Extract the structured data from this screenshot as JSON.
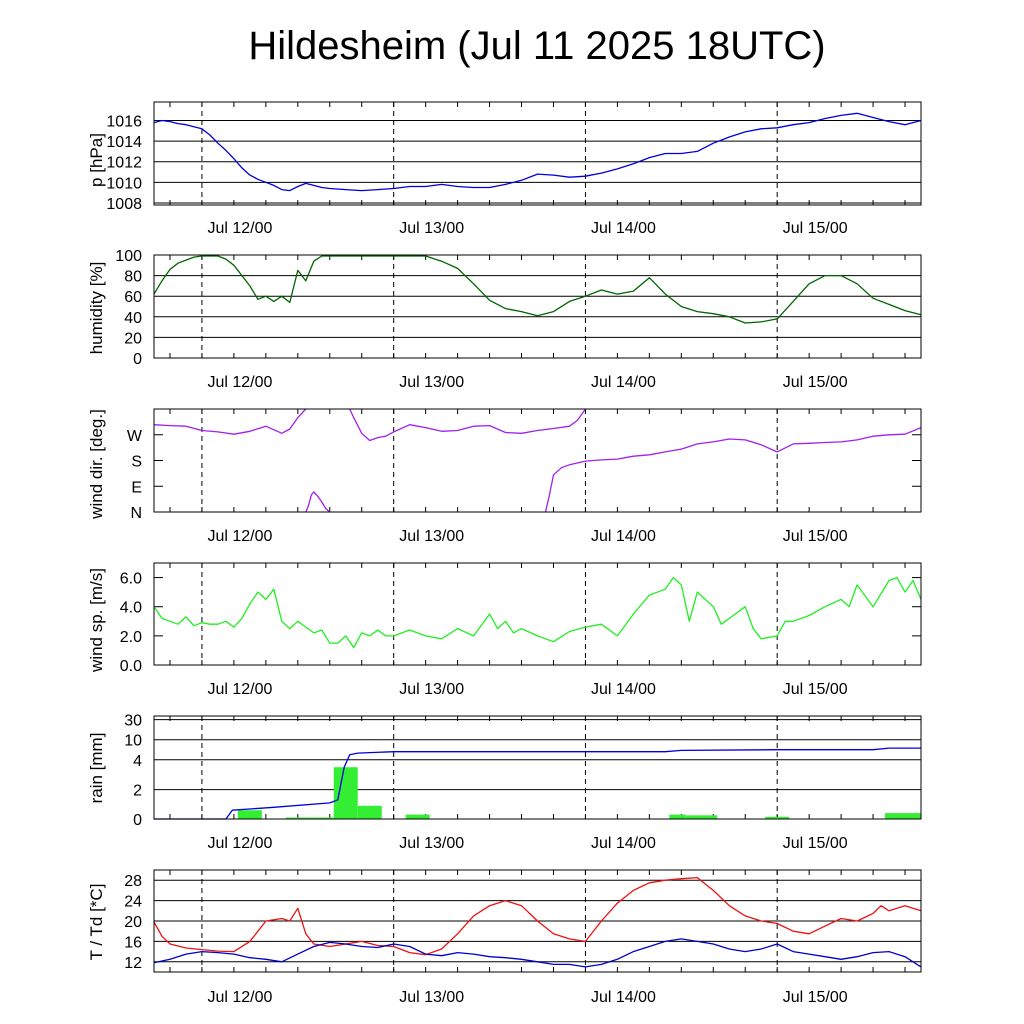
{
  "title": "Hildesheim (Jul 11 2025 18UTC)",
  "colors": {
    "pressure": "#0000dd",
    "humidity": "#006400",
    "wind_dir": "#a020f0",
    "wind_speed": "#22ee22",
    "rain_total": "#0000dd",
    "rain_bars": "#33ee33",
    "temperature": "#ee1111",
    "dewpoint": "#0000cc",
    "grid": "#000000"
  },
  "chart_data": [
    {
      "type": "line",
      "id": "pressure",
      "ylabel": "p [hPa]",
      "x_unit": "hours since Jul 11 18UTC",
      "xlim": [
        0,
        96
      ],
      "x_ticks": [
        6,
        30,
        54,
        78
      ],
      "x_tick_labels": [
        "Jul 12/00",
        "Jul 13/00",
        "Jul 14/00",
        "Jul 15/00"
      ],
      "ylim": [
        1007.8,
        1017.8
      ],
      "y_ticks": [
        1008,
        1010,
        1012,
        1014,
        1016
      ],
      "y_tick_labels": [
        "1008",
        "1010",
        "1012",
        "1014",
        "1016"
      ],
      "grid": true,
      "series": [
        {
          "color_key": "pressure",
          "x": [
            0,
            1,
            2,
            3,
            4,
            5,
            6,
            7,
            8,
            9,
            10,
            11,
            12,
            13,
            14,
            15,
            16,
            17,
            18,
            19,
            20,
            21,
            22,
            24,
            26,
            28,
            30,
            32,
            34,
            36,
            38,
            40,
            42,
            44,
            46,
            48,
            50,
            52,
            54,
            56,
            58,
            60,
            62,
            64,
            66,
            68,
            70,
            72,
            74,
            76,
            78,
            80,
            82,
            84,
            86,
            88,
            90,
            92,
            94,
            96
          ],
          "y": [
            1015.8,
            1016.0,
            1015.9,
            1015.7,
            1015.6,
            1015.4,
            1015.2,
            1014.6,
            1013.8,
            1013.1,
            1012.3,
            1011.4,
            1010.7,
            1010.3,
            1010.0,
            1009.7,
            1009.3,
            1009.2,
            1009.6,
            1009.9,
            1009.7,
            1009.5,
            1009.4,
            1009.3,
            1009.2,
            1009.3,
            1009.4,
            1009.6,
            1009.6,
            1009.8,
            1009.6,
            1009.5,
            1009.5,
            1009.8,
            1010.2,
            1010.8,
            1010.7,
            1010.5,
            1010.6,
            1010.9,
            1011.3,
            1011.8,
            1012.4,
            1012.8,
            1012.8,
            1013.0,
            1013.8,
            1014.4,
            1014.9,
            1015.2,
            1015.3,
            1015.6,
            1015.8,
            1016.2,
            1016.5,
            1016.7,
            1016.3,
            1015.9,
            1015.6,
            1016.0
          ]
        }
      ]
    },
    {
      "type": "line",
      "id": "humidity",
      "ylabel": "humidity [%]",
      "x_unit": "hours since Jul 11 18UTC",
      "xlim": [
        0,
        96
      ],
      "x_ticks": [
        6,
        30,
        54,
        78
      ],
      "x_tick_labels": [
        "Jul 12/00",
        "Jul 13/00",
        "Jul 14/00",
        "Jul 15/00"
      ],
      "ylim": [
        0,
        100
      ],
      "y_ticks": [
        0,
        20,
        40,
        60,
        80,
        100
      ],
      "y_tick_labels": [
        "0",
        "20",
        "40",
        "60",
        "80",
        "100"
      ],
      "grid": true,
      "series": [
        {
          "color_key": "humidity",
          "x": [
            0,
            1,
            2,
            3,
            4,
            5,
            6,
            7,
            8,
            9,
            10,
            11,
            12,
            13,
            14,
            15,
            16,
            17,
            18,
            19,
            20,
            21,
            22,
            24,
            26,
            28,
            30,
            32,
            34,
            36,
            38,
            40,
            42,
            44,
            46,
            48,
            50,
            52,
            54,
            56,
            58,
            60,
            62,
            64,
            66,
            68,
            70,
            72,
            74,
            76,
            78,
            80,
            82,
            84,
            86,
            88,
            90,
            92,
            94,
            96
          ],
          "y": [
            62,
            75,
            86,
            92,
            95,
            98,
            99,
            99,
            99,
            96,
            90,
            80,
            70,
            57,
            60,
            55,
            60,
            54,
            85,
            75,
            94,
            99,
            99,
            99,
            99,
            99,
            99,
            99,
            99,
            94,
            87,
            72,
            56,
            48,
            45,
            41,
            45,
            55,
            60,
            66,
            62,
            65,
            78,
            62,
            50,
            45,
            43,
            40,
            34,
            35,
            38,
            55,
            72,
            80,
            80,
            72,
            58,
            52,
            46,
            42
          ]
        }
      ]
    },
    {
      "type": "line",
      "id": "wind_direction",
      "ylabel": "wind dir. [deg.]",
      "x_unit": "hours since Jul 11 18UTC",
      "xlim": [
        0,
        96
      ],
      "x_ticks": [
        6,
        30,
        54,
        78
      ],
      "x_tick_labels": [
        "Jul 12/00",
        "Jul 13/00",
        "Jul 14/00",
        "Jul 15/00"
      ],
      "ylim": [
        0,
        360
      ],
      "y_ticks": [
        0,
        90,
        180,
        270
      ],
      "y_tick_labels": [
        "N",
        "E",
        "S",
        "W"
      ],
      "grid": false,
      "series": [
        {
          "color_key": "wind_dir",
          "x": [
            0,
            2,
            4,
            6,
            8,
            10,
            12,
            14,
            16,
            17,
            18,
            19
          ],
          "y": [
            305,
            302,
            300,
            285,
            280,
            272,
            282,
            300,
            275,
            290,
            330,
            360
          ]
        },
        {
          "color_key": "wind_dir",
          "x": [
            19,
            19.3,
            19.7,
            20,
            20.5,
            21,
            21.5,
            22
          ],
          "y": [
            0,
            20,
            60,
            70,
            55,
            35,
            12,
            0
          ]
        },
        {
          "color_key": "wind_dir",
          "x": [
            24.5,
            25,
            26,
            27,
            28,
            29,
            30,
            32,
            34,
            36,
            38,
            40,
            42,
            44,
            46,
            48,
            50,
            52,
            53,
            54
          ],
          "y": [
            360,
            330,
            275,
            250,
            260,
            265,
            280,
            305,
            295,
            282,
            285,
            300,
            302,
            278,
            275,
            285,
            292,
            300,
            320,
            360
          ]
        },
        {
          "color_key": "wind_dir",
          "x": [
            49,
            49.5,
            50,
            51,
            52,
            54,
            56,
            58,
            60,
            62,
            64,
            66,
            68,
            70,
            72,
            74,
            76,
            78,
            80,
            82,
            84,
            86,
            88,
            90,
            92,
            94,
            96
          ],
          "y": [
            0,
            60,
            130,
            155,
            165,
            178,
            182,
            185,
            195,
            200,
            210,
            220,
            238,
            245,
            255,
            252,
            235,
            210,
            238,
            240,
            243,
            245,
            252,
            265,
            270,
            272,
            295
          ]
        }
      ]
    },
    {
      "type": "line",
      "id": "wind_speed",
      "ylabel": "wind sp. [m/s]",
      "x_unit": "hours since Jul 11 18UTC",
      "xlim": [
        0,
        96
      ],
      "x_ticks": [
        6,
        30,
        54,
        78
      ],
      "x_tick_labels": [
        "Jul 12/00",
        "Jul 13/00",
        "Jul 14/00",
        "Jul 15/00"
      ],
      "ylim": [
        0,
        7.0
      ],
      "y_ticks": [
        0,
        2,
        4,
        6
      ],
      "y_tick_labels": [
        "0.0",
        "2.0",
        "4.0",
        "6.0"
      ],
      "grid": false,
      "series": [
        {
          "color_key": "wind_speed",
          "x": [
            0,
            1,
            2,
            3,
            4,
            5,
            6,
            7,
            8,
            9,
            10,
            11,
            12,
            13,
            14,
            15,
            16,
            17,
            18,
            19,
            20,
            21,
            22,
            23,
            24,
            25,
            26,
            27,
            28,
            29,
            30,
            32,
            34,
            36,
            38,
            40,
            42,
            43,
            44,
            45,
            46,
            48,
            50,
            52,
            54,
            56,
            58,
            60,
            62,
            64,
            65,
            66,
            67,
            68,
            69,
            70,
            71,
            72,
            74,
            75,
            76,
            78,
            79,
            80,
            82,
            84,
            86,
            87,
            88,
            90,
            92,
            93,
            94,
            95,
            96
          ],
          "y": [
            4.0,
            3.2,
            3.0,
            2.8,
            3.3,
            2.7,
            2.9,
            2.8,
            2.8,
            3.0,
            2.6,
            3.2,
            4.2,
            5.0,
            4.5,
            5.2,
            3.0,
            2.5,
            3.0,
            2.6,
            2.2,
            2.4,
            1.5,
            1.5,
            2.0,
            1.2,
            2.2,
            2.0,
            2.4,
            2.0,
            2.0,
            2.4,
            2.0,
            1.8,
            2.5,
            2.0,
            3.5,
            2.5,
            3.0,
            2.2,
            2.5,
            2.0,
            1.6,
            2.3,
            2.6,
            2.8,
            2.0,
            3.5,
            4.8,
            5.2,
            6.0,
            5.5,
            3.0,
            5.0,
            4.5,
            4.0,
            2.8,
            3.2,
            4.0,
            2.5,
            1.8,
            2.0,
            3.0,
            3.0,
            3.4,
            4.0,
            4.5,
            4.0,
            5.5,
            4.0,
            5.8,
            6.0,
            5.0,
            5.8,
            4.5
          ]
        }
      ]
    },
    {
      "type": "bar",
      "id": "rain",
      "ylabel": "rain [mm]",
      "x_unit": "hours since Jul 11 18UTC",
      "xlim": [
        0,
        96
      ],
      "x_ticks": [
        6,
        30,
        54,
        78
      ],
      "x_tick_labels": [
        "Jul 12/00",
        "Jul 13/00",
        "Jul 14/00",
        "Jul 15/00"
      ],
      "y_scale": "nonlinear",
      "y_ticks": [
        0,
        2,
        4,
        10,
        30
      ],
      "y_tick_labels": [
        "0",
        "2",
        "4",
        "10",
        "30"
      ],
      "grid": true,
      "bars": {
        "color_key": "rain_bars",
        "x_start": [
          10.5,
          16.5,
          22.5,
          25.5,
          31.5,
          64.5,
          66.5,
          76.5,
          91.5
        ],
        "x_end": [
          13.5,
          22.5,
          25.5,
          28.5,
          34.5,
          66.5,
          70.5,
          79.5,
          96
        ],
        "values": [
          0.6,
          0.1,
          3.5,
          0.9,
          0.3,
          0.3,
          0.25,
          0.15,
          0.4
        ]
      },
      "series": [
        {
          "color_key": "rain_total",
          "x": [
            0,
            9,
            9.8,
            15,
            22,
            23,
            23.8,
            24.5,
            25.5,
            30,
            40,
            54,
            64,
            66,
            78,
            90,
            92,
            96
          ],
          "y": [
            0,
            0,
            0.6,
            0.8,
            1.1,
            1.3,
            3.5,
            5.5,
            6.0,
            6.4,
            6.4,
            6.4,
            6.4,
            6.8,
            7.0,
            7.0,
            7.5,
            7.5
          ]
        }
      ]
    },
    {
      "type": "line",
      "id": "temperature",
      "ylabel": "T / Td [*C]",
      "x_unit": "hours since Jul 11 18UTC",
      "xlim": [
        0,
        96
      ],
      "x_ticks": [
        6,
        30,
        54,
        78
      ],
      "x_tick_labels": [
        "Jul 12/00",
        "Jul 13/00",
        "Jul 14/00",
        "Jul 15/00"
      ],
      "ylim": [
        10,
        30
      ],
      "y_ticks": [
        12,
        16,
        20,
        24,
        28
      ],
      "y_tick_labels": [
        "12",
        "16",
        "20",
        "24",
        "28"
      ],
      "grid": true,
      "series": [
        {
          "color_key": "temperature",
          "x": [
            0,
            1,
            2,
            4,
            6,
            8,
            10,
            12,
            14,
            16,
            17,
            18,
            19,
            20,
            22,
            24,
            26,
            28,
            30,
            32,
            34,
            36,
            38,
            40,
            42,
            44,
            46,
            48,
            50,
            52,
            54,
            56,
            58,
            60,
            62,
            64,
            66,
            68,
            70,
            72,
            74,
            76,
            78,
            80,
            82,
            84,
            86,
            88,
            90,
            91,
            92,
            94,
            96
          ],
          "y": [
            19.8,
            17,
            15.5,
            14.7,
            14.4,
            14.1,
            14.0,
            16.0,
            20.0,
            20.5,
            20.0,
            22.5,
            17.5,
            15.5,
            15.0,
            15.5,
            16.0,
            15.2,
            15.0,
            13.8,
            13.4,
            14.5,
            17.5,
            21.0,
            23.0,
            24.0,
            23.0,
            20.0,
            17.5,
            16.5,
            16.0,
            20.0,
            23.5,
            26.0,
            27.5,
            28.0,
            28.3,
            28.5,
            26.0,
            23.0,
            21.0,
            20.0,
            19.5,
            18.0,
            17.5,
            19.0,
            20.5,
            20.0,
            21.5,
            23.0,
            22.0,
            23.0,
            22.0
          ]
        },
        {
          "color_key": "dewpoint",
          "x": [
            0,
            2,
            4,
            6,
            8,
            10,
            12,
            14,
            16,
            18,
            20,
            22,
            24,
            26,
            28,
            30,
            32,
            34,
            36,
            38,
            40,
            42,
            44,
            46,
            48,
            50,
            52,
            54,
            56,
            58,
            60,
            62,
            64,
            66,
            68,
            70,
            72,
            74,
            76,
            78,
            80,
            82,
            84,
            86,
            88,
            90,
            92,
            94,
            96
          ],
          "y": [
            11.8,
            12.5,
            13.5,
            14.0,
            13.8,
            13.5,
            12.8,
            12.5,
            12.0,
            13.5,
            15.0,
            15.8,
            15.5,
            15.0,
            14.8,
            15.5,
            15.0,
            13.5,
            13.2,
            13.8,
            13.5,
            13.0,
            12.8,
            12.5,
            12.0,
            11.5,
            11.5,
            11.0,
            11.5,
            12.5,
            14.0,
            15.0,
            16.0,
            16.5,
            16.0,
            15.5,
            14.5,
            14.0,
            14.5,
            15.5,
            14.0,
            13.5,
            13.0,
            12.5,
            13.0,
            13.8,
            14.0,
            13.0,
            11.0
          ]
        }
      ]
    }
  ]
}
